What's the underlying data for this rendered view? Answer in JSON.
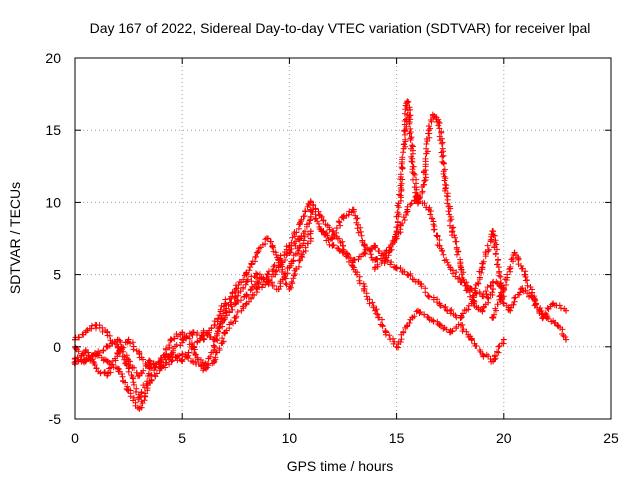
{
  "chart_data": {
    "type": "scatter",
    "title": "Day 167 of 2022, Sidereal Day-to-day VTEC variation (SDTVAR) for receiver lpal",
    "xlabel": "GPS time / hours",
    "ylabel": "SDTVAR / TECUs",
    "xlim": [
      0,
      25
    ],
    "ylim": [
      -5,
      20
    ],
    "xticks": [
      0,
      5,
      10,
      15,
      20,
      25
    ],
    "yticks": [
      -5,
      0,
      5,
      10,
      15,
      20
    ],
    "xtick_labels": [
      "0",
      "5",
      "10",
      "15",
      "20",
      "25"
    ],
    "ytick_labels": [
      "-5",
      "0",
      "5",
      "10",
      "15",
      "20"
    ],
    "grid": true,
    "marker": "+",
    "color": "#ff0000",
    "series": [
      {
        "name": "satellite-track-1",
        "x": [
          0.0,
          0.5,
          1.0,
          1.5,
          2.0,
          2.5,
          3.0,
          3.5,
          4.0,
          4.5,
          5.0,
          5.5,
          6.0,
          6.5,
          7.0,
          7.5,
          8.0,
          8.5,
          9.0,
          9.5,
          10.0,
          10.5,
          11.0
        ],
        "y": [
          0.5,
          1.0,
          1.5,
          1.0,
          0.0,
          -1.5,
          -3.5,
          -2.0,
          -1.0,
          -0.5,
          -1.0,
          0.0,
          1.0,
          0.5,
          2.0,
          3.0,
          3.5,
          4.5,
          5.0,
          6.0,
          7.0,
          8.5,
          10.0
        ]
      },
      {
        "name": "satellite-track-2",
        "x": [
          0.0,
          0.5,
          1.0,
          1.5,
          2.0,
          2.5,
          3.0,
          3.5,
          4.0,
          4.5,
          5.0,
          5.5,
          6.0,
          6.5,
          7.0,
          7.5,
          8.0,
          8.5,
          9.0,
          9.5,
          10.0,
          10.5,
          11.0
        ],
        "y": [
          -0.8,
          -1.0,
          -0.5,
          -1.0,
          -1.5,
          -3.0,
          -4.3,
          -2.5,
          -1.5,
          -1.0,
          -0.5,
          -1.0,
          -1.5,
          0.0,
          2.5,
          3.5,
          4.5,
          5.0,
          4.5,
          4.0,
          5.5,
          7.0,
          8.0
        ]
      },
      {
        "name": "satellite-track-3",
        "x": [
          0.0,
          0.5,
          1.0,
          1.5,
          2.0,
          2.5,
          3.0,
          3.5,
          4.0,
          4.5,
          5.0,
          5.5,
          6.0,
          6.5,
          7.0,
          7.5,
          8.0,
          8.5,
          9.0,
          9.5,
          10.0,
          10.5,
          11.0
        ],
        "y": [
          -1.2,
          -0.3,
          -1.5,
          -2.0,
          -0.5,
          0.5,
          -0.5,
          -1.5,
          -1.0,
          0.5,
          1.0,
          0.0,
          -1.5,
          -1.0,
          1.0,
          2.0,
          3.0,
          4.0,
          4.5,
          5.5,
          6.5,
          7.5,
          9.0
        ]
      },
      {
        "name": "satellite-track-4",
        "x": [
          0.0,
          0.5,
          1.0,
          1.5,
          2.0,
          2.5,
          3.0,
          3.5,
          4.0,
          4.5,
          5.0,
          5.5,
          6.0,
          6.5,
          7.0,
          7.5,
          8.0,
          8.5,
          9.0,
          9.5,
          10.0,
          10.5,
          11.0
        ],
        "y": [
          0.0,
          -1.0,
          -0.5,
          0.0,
          0.5,
          -1.0,
          -2.0,
          -1.0,
          -1.5,
          -0.5,
          0.5,
          1.0,
          0.5,
          1.5,
          3.0,
          4.0,
          5.0,
          6.5,
          7.5,
          6.0,
          4.0,
          6.0,
          7.5
        ]
      },
      {
        "name": "satellite-track-5",
        "x": [
          11.0,
          11.5,
          12.0,
          12.5,
          13.0,
          13.5,
          14.0,
          14.5,
          15.0,
          15.5,
          16.0,
          16.5,
          17.0,
          17.5,
          18.0,
          18.5,
          19.0,
          19.5,
          20.0
        ],
        "y": [
          9.5,
          8.0,
          7.0,
          6.5,
          6.0,
          6.5,
          7.0,
          6.0,
          5.5,
          5.0,
          4.5,
          3.5,
          3.0,
          2.5,
          2.0,
          3.0,
          5.5,
          8.0,
          3.0
        ]
      },
      {
        "name": "satellite-track-6",
        "x": [
          11.0,
          11.5,
          12.0,
          12.5,
          13.0,
          13.5,
          14.0,
          14.5,
          15.0,
          15.5,
          16.0,
          16.5,
          17.0,
          17.5,
          18.0,
          18.5,
          19.0,
          19.5,
          20.0
        ],
        "y": [
          10.0,
          9.0,
          8.0,
          7.0,
          5.5,
          4.0,
          2.5,
          1.0,
          0.0,
          1.5,
          2.5,
          2.0,
          1.5,
          1.0,
          1.5,
          0.5,
          -0.5,
          -1.0,
          0.5
        ]
      },
      {
        "name": "satellite-track-7",
        "x": [
          11.5,
          12.0,
          12.5,
          13.0,
          13.5,
          14.0,
          14.5,
          15.0,
          15.5,
          16.0,
          16.5,
          17.0,
          17.5,
          18.0,
          18.5,
          19.0,
          19.5,
          20.0
        ],
        "y": [
          8.0,
          7.5,
          9.0,
          9.5,
          7.0,
          6.0,
          6.5,
          7.5,
          9.5,
          10.5,
          9.5,
          7.0,
          5.5,
          4.5,
          4.0,
          3.5,
          4.5,
          4.0
        ]
      },
      {
        "name": "satellite-track-8",
        "x": [
          14.0,
          14.5,
          15.0,
          15.2,
          15.4,
          15.5,
          15.6,
          15.8,
          16.0,
          16.3,
          16.5,
          16.7,
          17.0,
          17.3,
          17.6,
          18.0,
          18.3,
          18.6,
          19.0,
          19.5
        ],
        "y": [
          5.5,
          6.0,
          8.0,
          11.0,
          15.0,
          17.0,
          16.0,
          12.0,
          10.0,
          11.5,
          15.0,
          16.0,
          15.5,
          11.0,
          8.0,
          5.5,
          4.0,
          3.0,
          2.5,
          4.0
        ]
      },
      {
        "name": "satellite-track-9",
        "x": [
          19.5,
          20.0,
          20.5,
          21.0,
          21.5,
          22.0,
          22.5,
          22.9
        ],
        "y": [
          2.0,
          4.0,
          6.5,
          5.0,
          3.0,
          2.0,
          1.5,
          0.5
        ]
      },
      {
        "name": "satellite-track-10",
        "x": [
          19.8,
          20.3,
          20.8,
          21.3,
          21.8,
          22.3,
          22.9
        ],
        "y": [
          3.5,
          2.5,
          4.0,
          3.5,
          2.0,
          3.0,
          2.5
        ]
      }
    ]
  }
}
